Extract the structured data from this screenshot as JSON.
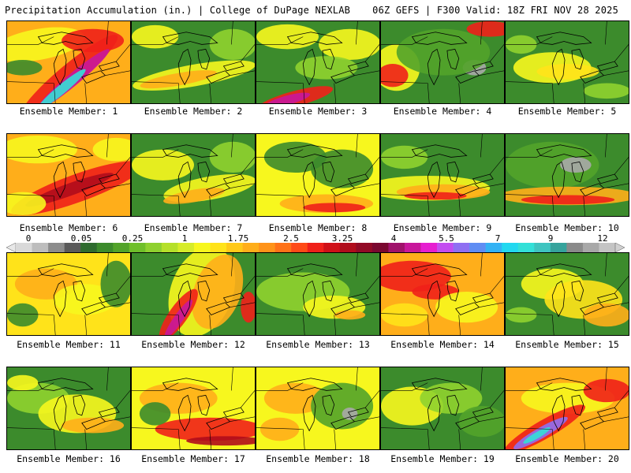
{
  "header": {
    "title_left": "Precipitation Accumulation (in.) | College of DuPage NEXLAB",
    "title_right": "06Z GEFS | F300 Valid: 18Z FRI NOV 28 2025"
  },
  "colorbar": {
    "labels": [
      "0",
      "0.05",
      "0.25",
      "1",
      "1.75",
      "2.5",
      "3.25",
      "4",
      "5.5",
      "7",
      "9",
      "12"
    ],
    "colors": [
      "#d9d9d9",
      "#bdbdbd",
      "#8c8c8c",
      "#5a5a5a",
      "#2e6b2e",
      "#3c8b2c",
      "#52a32a",
      "#6fbf2a",
      "#8fd12f",
      "#b5e02a",
      "#d6ec2a",
      "#f7f71e",
      "#ffe31a",
      "#ffc918",
      "#ffae1a",
      "#ff9319",
      "#ff7218",
      "#ff4a17",
      "#f0201a",
      "#d01018",
      "#b00c1c",
      "#920a26",
      "#7a0830",
      "#a0126b",
      "#c8179b",
      "#e61fd0",
      "#c34df0",
      "#8f6ff2",
      "#5f8df3",
      "#33b2f4",
      "#22d8f0",
      "#33e0d8",
      "#3fc4c0",
      "#36a39c",
      "#8a8a8a",
      "#a8a8a8",
      "#c4c4c4"
    ]
  },
  "panels": [
    {
      "caption": "Ensemble Member: 1"
    },
    {
      "caption": "Ensemble Member: 2"
    },
    {
      "caption": "Ensemble Member: 3"
    },
    {
      "caption": "Ensemble Member: 4"
    },
    {
      "caption": "Ensemble Member: 5"
    },
    {
      "caption": "Ensemble Member: 6"
    },
    {
      "caption": "Ensemble Member: 7"
    },
    {
      "caption": "Ensemble Member: 8"
    },
    {
      "caption": "Ensemble Member: 9"
    },
    {
      "caption": "Ensemble Member: 10"
    },
    {
      "caption": "Ensemble Member: 11"
    },
    {
      "caption": "Ensemble Member: 12"
    },
    {
      "caption": "Ensemble Member: 13"
    },
    {
      "caption": "Ensemble Member: 14"
    },
    {
      "caption": "Ensemble Member: 15"
    },
    {
      "caption": "Ensemble Member: 16"
    },
    {
      "caption": "Ensemble Member: 17"
    },
    {
      "caption": "Ensemble Member: 18"
    },
    {
      "caption": "Ensemble Member: 19"
    },
    {
      "caption": "Ensemble Member: 20"
    }
  ]
}
